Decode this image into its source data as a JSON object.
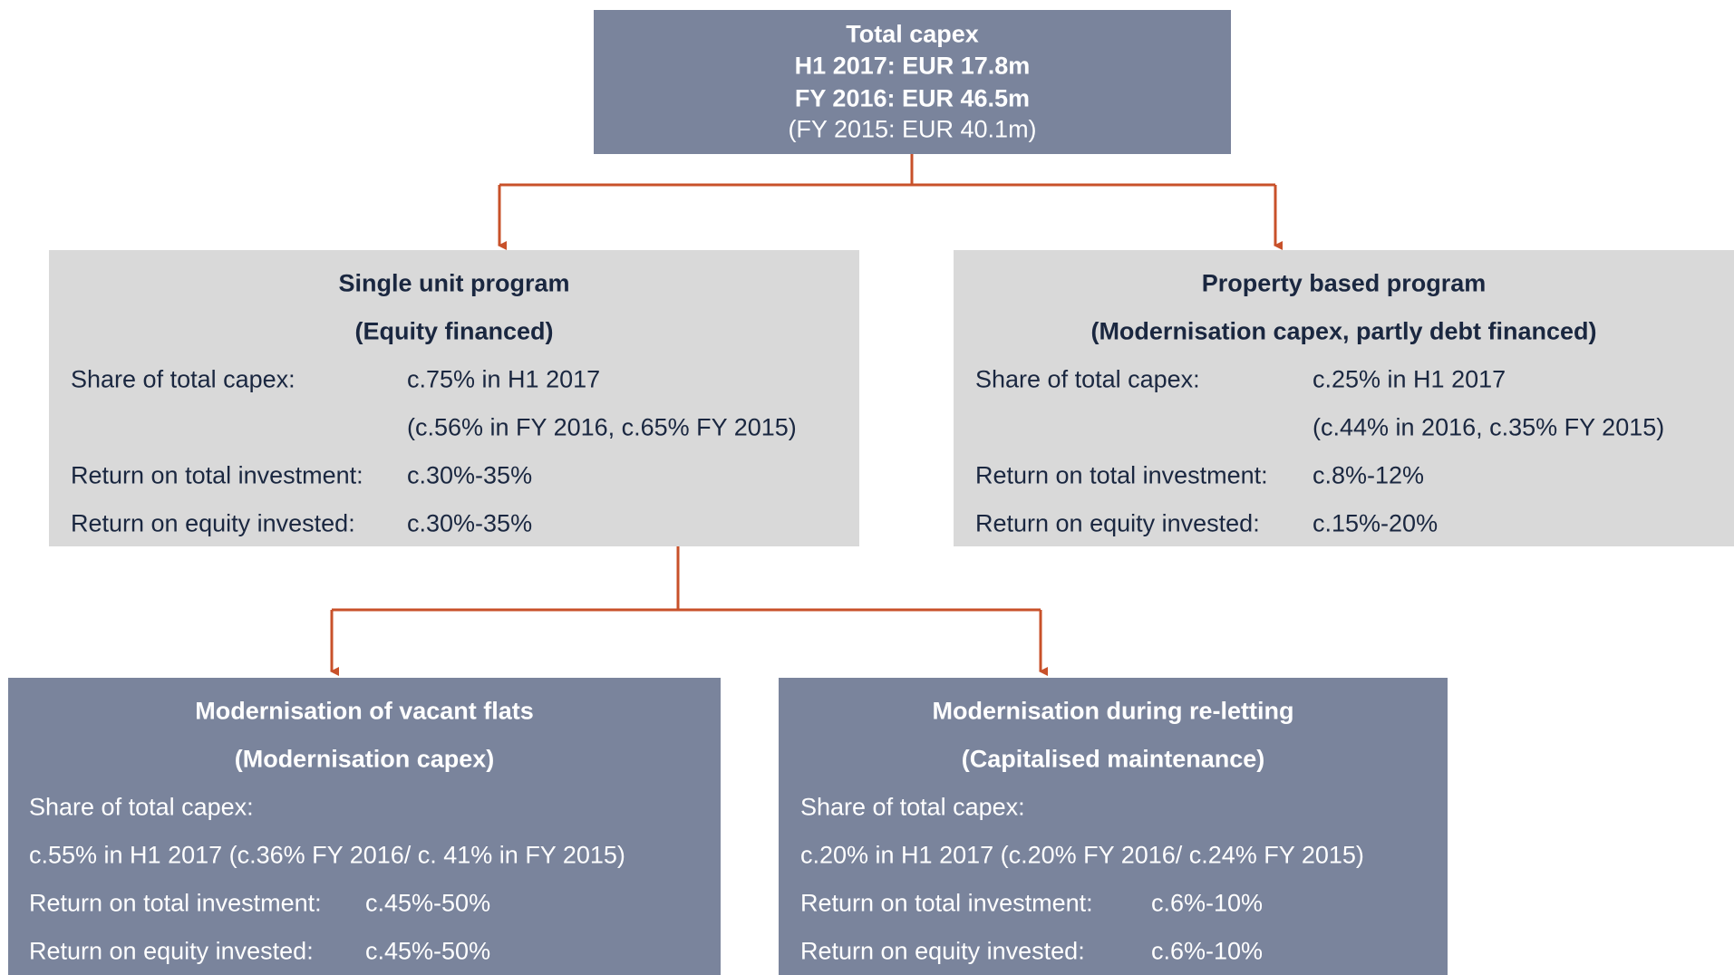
{
  "top": {
    "lines": [
      "Total capex",
      "H1 2017: EUR 17.8m",
      "FY 2016: EUR 46.5m",
      "(FY 2015: EUR 40.1m)"
    ]
  },
  "programs": [
    {
      "title": "Single unit program",
      "subtitle": "(Equity financed)",
      "rows": [
        {
          "label": "Share of total capex:",
          "value": "c.75% in H1 2017"
        },
        {
          "value": "(c.56% in FY 2016, c.65% FY 2015)"
        },
        {
          "label": "Return on total investment:",
          "value": "c.30%-35%"
        },
        {
          "label": "Return on equity invested:",
          "value": "c.30%-35%"
        }
      ]
    },
    {
      "title": "Property based program",
      "subtitle": "(Modernisation capex, partly debt financed)",
      "rows": [
        {
          "label": "Share of total capex:",
          "value": "c.25% in H1 2017"
        },
        {
          "value": "(c.44% in 2016, c.35% FY 2015)"
        },
        {
          "label": "Return on total investment:",
          "value": "c.8%-12%"
        },
        {
          "label": "Return on equity invested:",
          "value": "c.15%-20%"
        }
      ]
    },
    {
      "title": "Modernisation of vacant flats",
      "subtitle": "(Modernisation capex)",
      "rows": [
        {
          "label": "Share of total capex:"
        },
        {
          "label": "c.55% in H1 2017 (c.36% FY 2016/ c. 41% in FY 2015)"
        },
        {
          "label": "Return on total investment:",
          "value": "c.45%-50%"
        },
        {
          "label": "Return on equity invested:",
          "value": "c.45%-50%"
        }
      ]
    },
    {
      "title": "Modernisation during re-letting",
      "subtitle": "(Capitalised maintenance)",
      "rows": [
        {
          "label": "Share of total capex:"
        },
        {
          "label": "c.20% in H1 2017 (c.20% FY 2016/ c.24% FY 2015)"
        },
        {
          "label": "Return on total investment:",
          "value": "c.6%-10%"
        },
        {
          "label": "Return on equity invested:",
          "value": "c.6%-10%"
        }
      ]
    }
  ]
}
